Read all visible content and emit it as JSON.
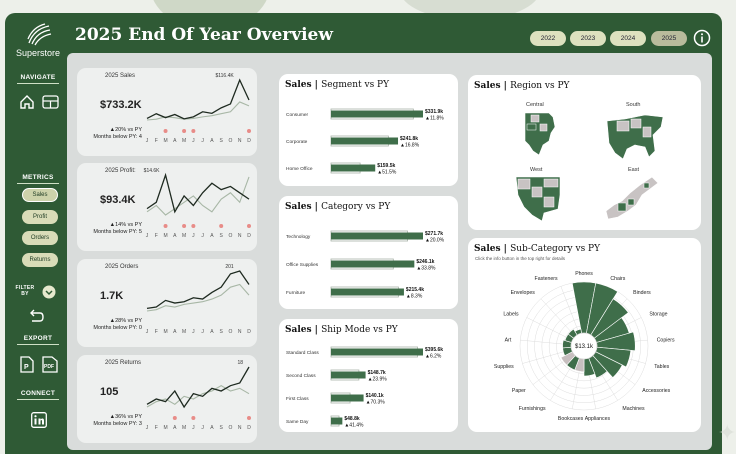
{
  "app": {
    "logo": "Superstore",
    "title": "2025 End Of Year Overview"
  },
  "years": [
    "2022",
    "2023",
    "2024",
    "2025"
  ],
  "sidebar": {
    "navigate": "NAVIGATE",
    "metrics": "METRICS",
    "metric_buttons": [
      "Sales",
      "Profit",
      "Orders",
      "Returns"
    ],
    "filter": "FILTER BY",
    "export": "EXPORT",
    "connect": "CONNECT"
  },
  "kpis": [
    {
      "title": "2025 Sales",
      "value": "$733.2K",
      "vs": "▲20% vs PY",
      "below": "Months below PY: 4",
      "peak": "$116.4K"
    },
    {
      "title": "2025 Profit:",
      "value": "$93.4K",
      "vs": "▲14% vs PY",
      "below": "Months below PY: 5",
      "peak": "$14.6K"
    },
    {
      "title": "2025 Orders",
      "value": "1.7K",
      "vs": "▲28% vs PY",
      "below": "Months below PY: 0",
      "peak": "201"
    },
    {
      "title": "2025 Returns",
      "value": "105",
      "vs": "▲36% vs PY",
      "below": "Months below PY: 3",
      "peak": "18"
    }
  ],
  "months": [
    "J",
    "F",
    "M",
    "A",
    "M",
    "J",
    "J",
    "A",
    "S",
    "O",
    "N",
    "D"
  ],
  "kpi_series": [
    {
      "cy": [
        18,
        30,
        20,
        28,
        17,
        22,
        35,
        31,
        45,
        55,
        116,
        65
      ],
      "py": [
        14,
        16,
        22,
        20,
        16,
        18,
        22,
        25,
        30,
        35,
        60,
        50
      ],
      "below": [
        2,
        4,
        5,
        11
      ]
    },
    {
      "cy": [
        4,
        6,
        14.6,
        3,
        8,
        5,
        9,
        12,
        10,
        11,
        9,
        7
      ],
      "py": [
        3,
        5,
        2,
        4,
        6,
        8,
        5,
        3,
        7,
        9,
        6,
        14
      ],
      "below": [
        2,
        4,
        5,
        11,
        8
      ]
    },
    {
      "cy": [
        60,
        65,
        90,
        80,
        85,
        100,
        95,
        120,
        140,
        190,
        201,
        150
      ],
      "py": [
        50,
        55,
        70,
        65,
        75,
        80,
        85,
        95,
        110,
        140,
        150,
        110
      ],
      "below": []
    },
    {
      "cy": [
        4,
        6,
        5,
        9,
        3,
        8,
        7,
        10,
        9,
        11,
        12,
        18
      ],
      "py": [
        3,
        5,
        6,
        4,
        7,
        6,
        8,
        9,
        11,
        9,
        10,
        8
      ],
      "below": [
        3,
        5,
        11
      ]
    }
  ],
  "segment": {
    "title": "Sales",
    "subtitle": "Segment vs PY",
    "rows": [
      {
        "label": "Consumer",
        "value": "$331.9k",
        "change": "▲11.8%",
        "cy": 331.9,
        "py": 297
      },
      {
        "label": "Corporate",
        "value": "$241.8k",
        "change": "▲16.8%",
        "cy": 241.8,
        "py": 207
      },
      {
        "label": "Home Office",
        "value": "$159.5k",
        "change": "▲51.5%",
        "cy": 159.5,
        "py": 105
      }
    ]
  },
  "category": {
    "title": "Sales",
    "subtitle": "Category vs PY",
    "rows": [
      {
        "label": "Technology",
        "value": "$271.7k",
        "change": "▲20.0%",
        "cy": 271.7,
        "py": 226
      },
      {
        "label": "Office Supplies",
        "value": "$246.1k",
        "change": "▲33.8%",
        "cy": 246.1,
        "py": 184
      },
      {
        "label": "Furniture",
        "value": "$215.4k",
        "change": "▲8.3%",
        "cy": 215.4,
        "py": 199
      }
    ]
  },
  "shipmode": {
    "title": "Sales",
    "subtitle": "Ship Mode vs PY",
    "rows": [
      {
        "label": "Standard Class",
        "value": "$395.6k",
        "change": "▲6.2%",
        "cy": 395.6,
        "py": 372
      },
      {
        "label": "Second Class",
        "value": "$148.7k",
        "change": "▲23.9%",
        "cy": 148.7,
        "py": 120
      },
      {
        "label": "First Class",
        "value": "$140.1k",
        "change": "▲70.3%",
        "cy": 140.1,
        "py": 82
      },
      {
        "label": "Same Day",
        "value": "$48.8k",
        "change": "▲41.4%",
        "cy": 48.8,
        "py": 34.5
      }
    ]
  },
  "region": {
    "title": "Sales",
    "subtitle": "Region vs PY",
    "regions": [
      "Central",
      "South",
      "West",
      "East"
    ]
  },
  "subcat": {
    "title": "Sales",
    "subtitle": "Sub-Category vs PY",
    "note": "Click the info button in the top right for details",
    "center": "$13.1k",
    "labels": [
      "Phones",
      "Chairs",
      "Binders",
      "Storage",
      "Copiers",
      "Tables",
      "Accessories",
      "Machines",
      "Appliances",
      "Bookcases",
      "Furnishings",
      "Paper",
      "Supplies",
      "Art",
      "Labels",
      "Envelopes",
      "Fasteners"
    ],
    "values": [
      6,
      6,
      5,
      4,
      4.5,
      4,
      3.5,
      2.5,
      2,
      1.5,
      1.5,
      1.5,
      1,
      1,
      0.8,
      0.8,
      0.5
    ]
  },
  "colors": {
    "primary": "#3f6e4a",
    "frame": "#2f5a35",
    "accent_dot": "#e88c88"
  }
}
